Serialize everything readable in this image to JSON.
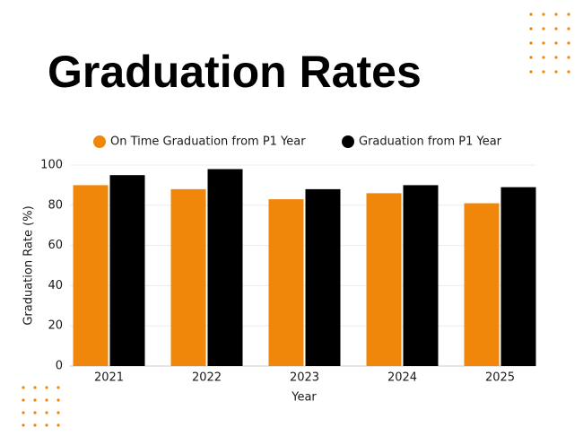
{
  "chart_data": {
    "type": "bar",
    "title": "Graduation Rates",
    "x_label": "Year",
    "y_label": "Graduation Rate (%)",
    "categories": [
      "2021",
      "2022",
      "2023",
      "2024",
      "2025"
    ],
    "series": [
      {
        "name": "On Time Graduation from P1 Year",
        "color": "#f0870a",
        "values": [
          90,
          88,
          83,
          86,
          81
        ]
      },
      {
        "name": "Graduation from P1 Year",
        "color": "#000000",
        "values": [
          95,
          98,
          88,
          90,
          89
        ]
      }
    ],
    "ylim": [
      0,
      100
    ],
    "yticks": [
      0,
      20,
      40,
      60,
      80,
      100
    ],
    "grid": true,
    "legend": "top"
  }
}
